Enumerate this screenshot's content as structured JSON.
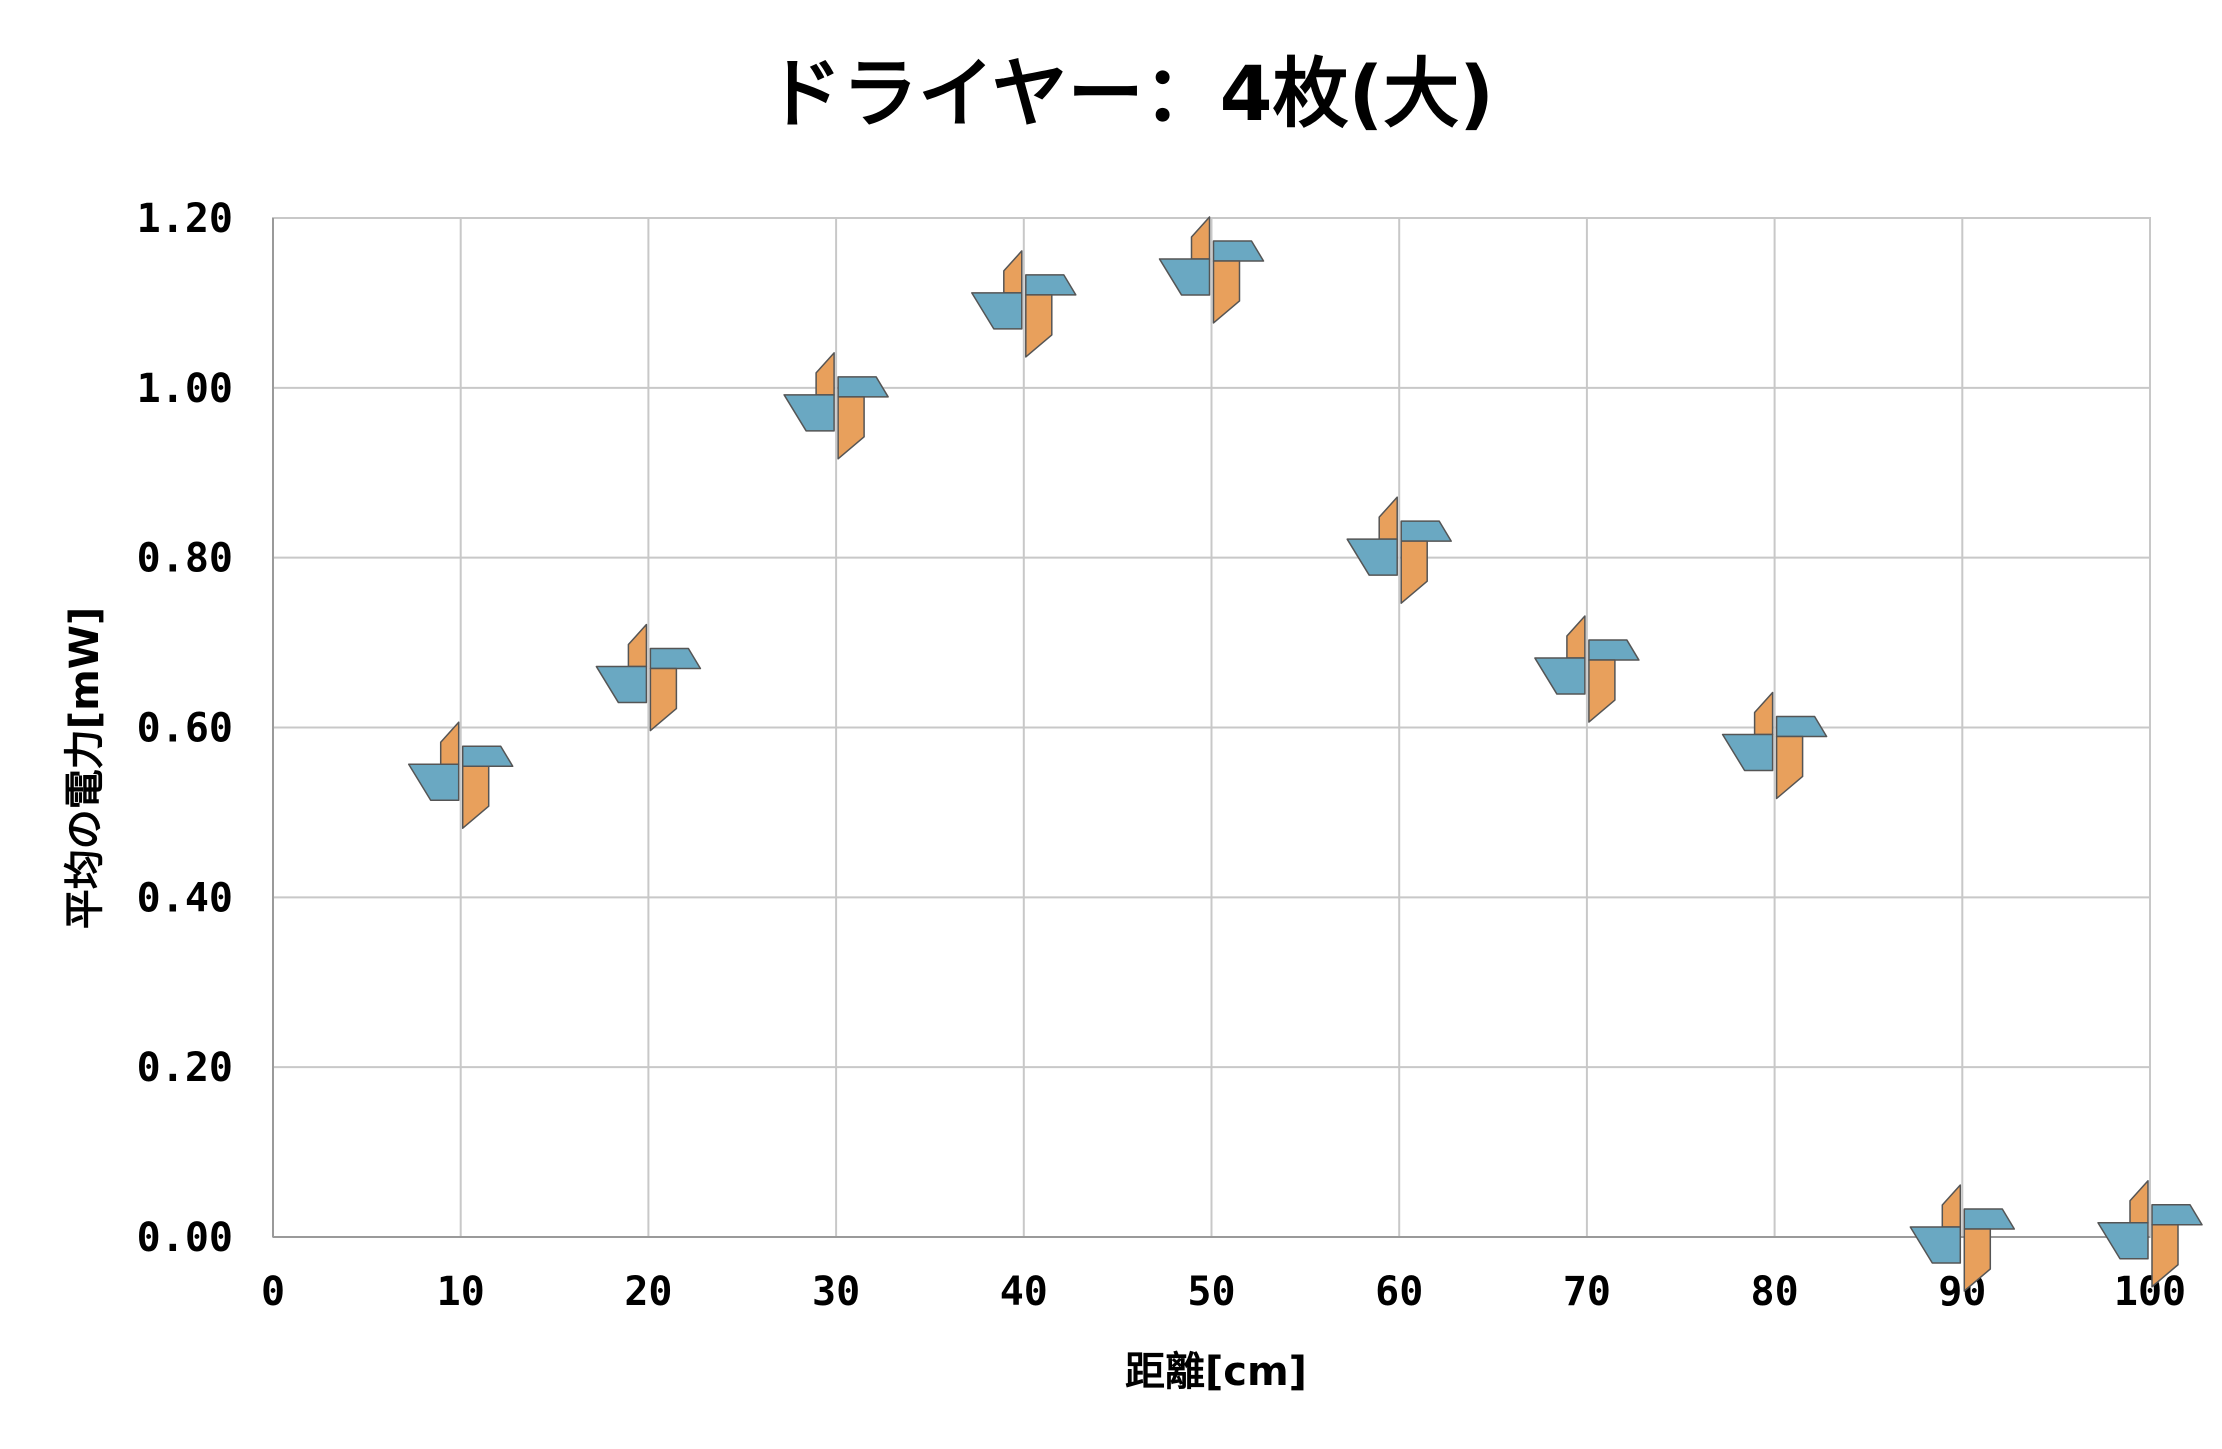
{
  "chart_data": {
    "type": "scatter",
    "title": "ドライヤー：4枚(大)",
    "xlabel": "距離[cm]",
    "ylabel": "平均の電力[mW]",
    "xlim": [
      0,
      100
    ],
    "ylim": [
      0,
      1.2
    ],
    "x_ticks": [
      "0",
      "10",
      "20",
      "30",
      "40",
      "50",
      "60",
      "70",
      "80",
      "90",
      "100"
    ],
    "y_ticks": [
      "0.00",
      "0.20",
      "0.40",
      "0.60",
      "0.80",
      "1.00",
      "1.20"
    ],
    "grid": true,
    "marker": "pinwheel-icon",
    "series": [
      {
        "x": [
          10,
          20,
          30,
          40,
          50,
          60,
          70,
          80,
          90,
          100
        ],
        "y": [
          0.545,
          0.66,
          0.98,
          1.1,
          1.14,
          0.81,
          0.67,
          0.58,
          0.0,
          0.005
        ]
      }
    ],
    "colors": {
      "marker_orange": "#e8a05c",
      "marker_blue": "#6aa8c2",
      "marker_outline": "#555555",
      "grid": "#c8c8c8"
    }
  }
}
